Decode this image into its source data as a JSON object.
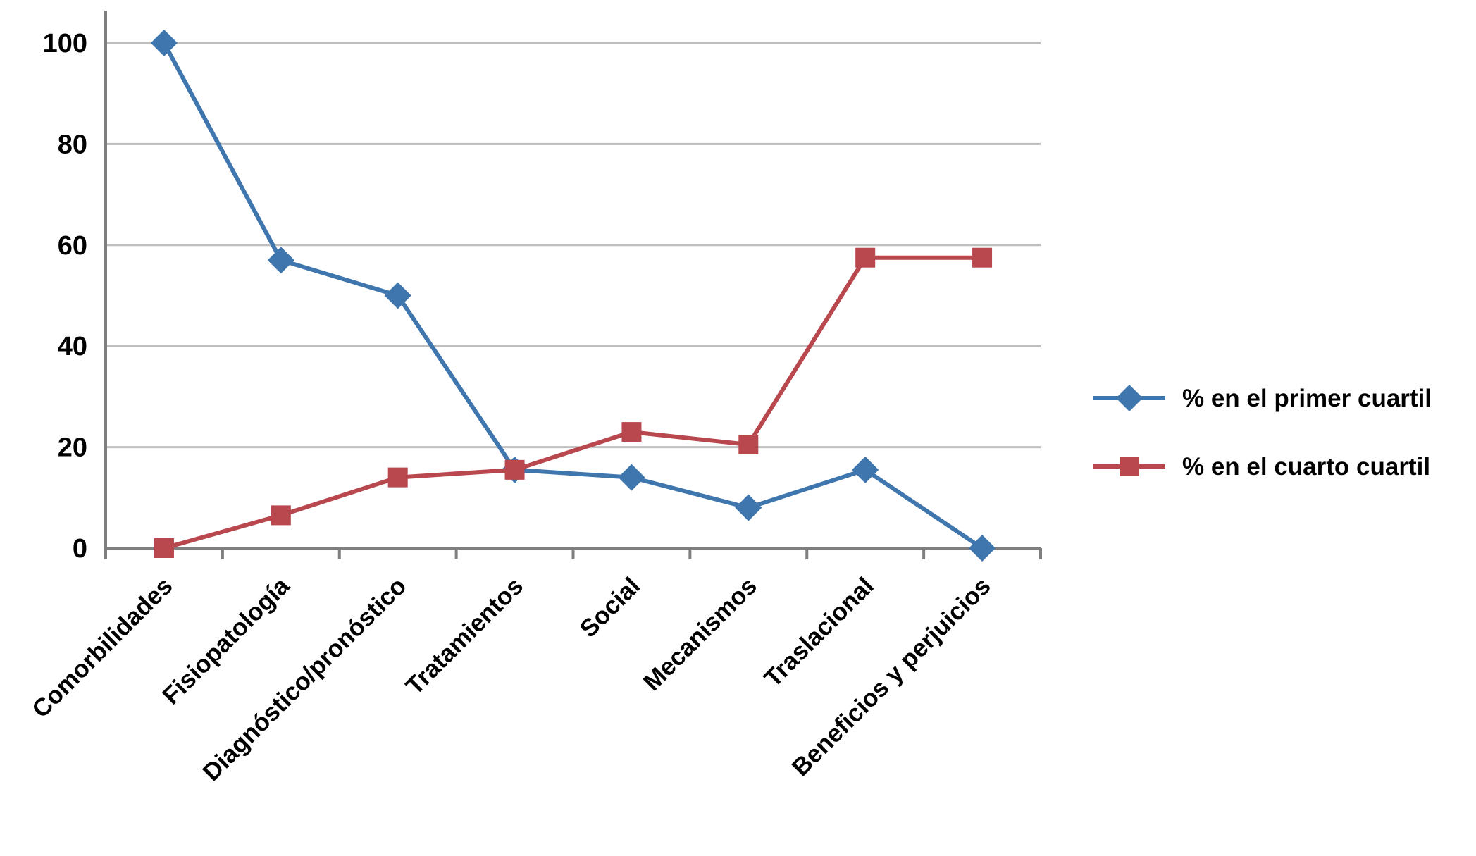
{
  "chart_data": {
    "type": "line",
    "title": "",
    "xlabel": "",
    "ylabel": "",
    "categories": [
      "Comorbilidades",
      "Fisiopatología",
      "Diagnóstico/pronóstico",
      "Tratamientos",
      "Social",
      "Mecanismos",
      "Traslacional",
      "Beneficios y perjuicios"
    ],
    "series": [
      {
        "name": "% en el primer cuartil",
        "color": "#3F76AE",
        "marker": "diamond",
        "values": [
          100,
          57,
          50,
          15.5,
          14,
          8,
          15.5,
          0
        ]
      },
      {
        "name": "% en el cuarto cuartil",
        "color": "#B8474E",
        "marker": "square",
        "values": [
          0,
          6.5,
          14,
          15.5,
          23,
          20.5,
          57.5,
          57.5
        ]
      }
    ],
    "yticks": [
      0,
      20,
      40,
      60,
      80,
      100
    ],
    "ylim": [
      0,
      100
    ],
    "grid": true,
    "legend_position": "right"
  },
  "colors": {
    "background": "#FFFFFF",
    "gridline": "#BFBFBF",
    "axis": "#7F7F7F",
    "text": "#000000"
  }
}
